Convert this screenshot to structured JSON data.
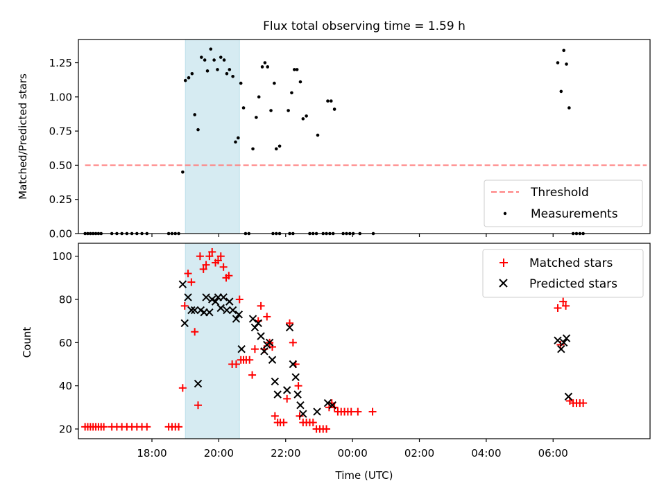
{
  "chart_data": [
    {
      "type": "scatter",
      "title": "Flux total observing time = 1.59 h",
      "xlabel": "",
      "ylabel": "Matched/Predicted stars",
      "xlim": [
        -1.2,
        15.9
      ],
      "ylim": [
        0.0,
        1.42
      ],
      "xticks": [
        1,
        3,
        5,
        7,
        9,
        11,
        13
      ],
      "xtick_labels_visible": false,
      "yticks": [
        0.0,
        0.25,
        0.5,
        0.75,
        1.0,
        1.25
      ],
      "ytick_labels": [
        "0.00",
        "0.25",
        "0.50",
        "0.75",
        "1.00",
        "1.25"
      ],
      "shaded_region": {
        "x0": 2.0,
        "x1": 3.62,
        "color": "#add8e6",
        "alpha": 0.5
      },
      "threshold": {
        "label": "Threshold",
        "y": 0.5,
        "x0": -1.0,
        "x1": 15.8,
        "color": "#ff7f7f",
        "style": "dashed"
      },
      "measurements": {
        "label": "Measurements",
        "color": "#000000",
        "points": [
          [
            -1.0,
            0.0
          ],
          [
            -0.92,
            0.0
          ],
          [
            -0.84,
            0.0
          ],
          [
            -0.76,
            0.0
          ],
          [
            -0.68,
            0.0
          ],
          [
            -0.6,
            0.0
          ],
          [
            -0.52,
            0.0
          ],
          [
            -0.2,
            0.0
          ],
          [
            -0.05,
            0.0
          ],
          [
            0.1,
            0.0
          ],
          [
            0.25,
            0.0
          ],
          [
            0.4,
            0.0
          ],
          [
            0.55,
            0.0
          ],
          [
            0.7,
            0.0
          ],
          [
            0.85,
            0.0
          ],
          [
            1.5,
            0.0
          ],
          [
            1.6,
            0.0
          ],
          [
            1.7,
            0.0
          ],
          [
            1.8,
            0.0
          ],
          [
            1.92,
            0.45
          ],
          [
            2.0,
            1.12
          ],
          [
            2.1,
            1.14
          ],
          [
            2.2,
            1.17
          ],
          [
            2.28,
            0.87
          ],
          [
            2.38,
            0.76
          ],
          [
            2.48,
            1.29
          ],
          [
            2.58,
            1.27
          ],
          [
            2.66,
            1.19
          ],
          [
            2.76,
            1.35
          ],
          [
            2.86,
            1.27
          ],
          [
            2.96,
            1.2
          ],
          [
            3.06,
            1.29
          ],
          [
            3.16,
            1.27
          ],
          [
            3.24,
            1.17
          ],
          [
            3.32,
            1.2
          ],
          [
            3.42,
            1.15
          ],
          [
            3.5,
            0.67
          ],
          [
            3.58,
            0.7
          ],
          [
            3.66,
            1.1
          ],
          [
            3.74,
            0.92
          ],
          [
            3.8,
            0.0
          ],
          [
            3.9,
            0.0
          ],
          [
            4.02,
            0.62
          ],
          [
            4.12,
            0.85
          ],
          [
            4.2,
            1.0
          ],
          [
            4.3,
            1.22
          ],
          [
            4.38,
            1.25
          ],
          [
            4.46,
            1.22
          ],
          [
            4.56,
            0.9
          ],
          [
            4.66,
            1.1
          ],
          [
            4.72,
            0.62
          ],
          [
            4.82,
            0.64
          ],
          [
            5.08,
            0.9
          ],
          [
            5.18,
            1.03
          ],
          [
            5.26,
            1.2
          ],
          [
            5.34,
            1.2
          ],
          [
            5.44,
            1.11
          ],
          [
            5.52,
            0.84
          ],
          [
            5.62,
            0.86
          ],
          [
            5.96,
            0.72
          ],
          [
            6.26,
            0.97
          ],
          [
            6.36,
            0.97
          ],
          [
            6.46,
            0.91
          ],
          [
            4.62,
            0.0
          ],
          [
            4.72,
            0.0
          ],
          [
            4.82,
            0.0
          ],
          [
            5.12,
            0.0
          ],
          [
            5.22,
            0.0
          ],
          [
            5.72,
            0.0
          ],
          [
            5.82,
            0.0
          ],
          [
            5.92,
            0.0
          ],
          [
            6.12,
            0.0
          ],
          [
            6.22,
            0.0
          ],
          [
            6.32,
            0.0
          ],
          [
            6.42,
            0.0
          ],
          [
            6.72,
            0.0
          ],
          [
            6.82,
            0.0
          ],
          [
            6.92,
            0.0
          ],
          [
            7.02,
            0.0
          ],
          [
            7.22,
            0.0
          ],
          [
            7.62,
            0.0
          ],
          [
            13.14,
            1.25
          ],
          [
            13.24,
            1.04
          ],
          [
            13.32,
            1.34
          ],
          [
            13.4,
            1.24
          ],
          [
            13.48,
            0.92
          ],
          [
            13.6,
            0.0
          ],
          [
            13.7,
            0.0
          ],
          [
            13.8,
            0.0
          ],
          [
            13.9,
            0.0
          ]
        ]
      },
      "legend": {
        "location": "lower-right",
        "entries": [
          "Threshold",
          "Measurements"
        ]
      }
    },
    {
      "type": "scatter",
      "title": "",
      "xlabel": "Time (UTC)",
      "ylabel": "Count",
      "xlim": [
        -1.2,
        15.9
      ],
      "ylim": [
        15.5,
        106
      ],
      "xticks": [
        1,
        3,
        5,
        7,
        9,
        11,
        13
      ],
      "xtick_labels": [
        "18:00",
        "20:00",
        "22:00",
        "00:00",
        "02:00",
        "04:00",
        "06:00"
      ],
      "yticks": [
        20,
        40,
        60,
        80,
        100
      ],
      "ytick_labels": [
        "20",
        "40",
        "60",
        "80",
        "100"
      ],
      "shaded_region": {
        "x0": 2.0,
        "x1": 3.62,
        "color": "#add8e6",
        "alpha": 0.5
      },
      "series": [
        {
          "name": "Matched stars",
          "marker": "plus",
          "color": "#ff0000",
          "points": [
            [
              -1.0,
              21
            ],
            [
              -0.92,
              21
            ],
            [
              -0.84,
              21
            ],
            [
              -0.76,
              21
            ],
            [
              -0.68,
              21
            ],
            [
              -0.6,
              21
            ],
            [
              -0.52,
              21
            ],
            [
              -0.44,
              21
            ],
            [
              -0.2,
              21
            ],
            [
              -0.05,
              21
            ],
            [
              0.1,
              21
            ],
            [
              0.25,
              21
            ],
            [
              0.4,
              21
            ],
            [
              0.55,
              21
            ],
            [
              0.7,
              21
            ],
            [
              0.85,
              21
            ],
            [
              1.5,
              21
            ],
            [
              1.6,
              21
            ],
            [
              1.7,
              21
            ],
            [
              1.8,
              21
            ],
            [
              1.92,
              39
            ],
            [
              1.98,
              77
            ],
            [
              2.08,
              92
            ],
            [
              2.18,
              88
            ],
            [
              2.28,
              65
            ],
            [
              2.38,
              31
            ],
            [
              2.44,
              100
            ],
            [
              2.54,
              94
            ],
            [
              2.62,
              96
            ],
            [
              2.72,
              100
            ],
            [
              2.8,
              102
            ],
            [
              2.9,
              97
            ],
            [
              2.98,
              98
            ],
            [
              3.06,
              100
            ],
            [
              3.14,
              95
            ],
            [
              3.22,
              90
            ],
            [
              3.3,
              91
            ],
            [
              3.4,
              50
            ],
            [
              3.52,
              50
            ],
            [
              3.62,
              80
            ],
            [
              3.66,
              52
            ],
            [
              3.74,
              52
            ],
            [
              3.82,
              52
            ],
            [
              3.92,
              52
            ],
            [
              4.0,
              45
            ],
            [
              4.08,
              57
            ],
            [
              4.18,
              70
            ],
            [
              4.26,
              77
            ],
            [
              4.36,
              57
            ],
            [
              4.44,
              72
            ],
            [
              4.52,
              60
            ],
            [
              4.6,
              58
            ],
            [
              4.68,
              26
            ],
            [
              4.76,
              23
            ],
            [
              4.84,
              23
            ],
            [
              4.94,
              23
            ],
            [
              5.04,
              34
            ],
            [
              5.12,
              69
            ],
            [
              5.22,
              60
            ],
            [
              5.3,
              50
            ],
            [
              5.38,
              40
            ],
            [
              5.42,
              26
            ],
            [
              5.52,
              23
            ],
            [
              5.62,
              23
            ],
            [
              5.72,
              23
            ],
            [
              5.82,
              23
            ],
            [
              5.92,
              20
            ],
            [
              6.02,
              20
            ],
            [
              6.12,
              20
            ],
            [
              6.22,
              20
            ],
            [
              6.3,
              30
            ],
            [
              6.38,
              32
            ],
            [
              6.46,
              30
            ],
            [
              6.56,
              28
            ],
            [
              6.66,
              28
            ],
            [
              6.76,
              28
            ],
            [
              6.86,
              28
            ],
            [
              6.96,
              28
            ],
            [
              7.16,
              28
            ],
            [
              7.6,
              28
            ],
            [
              13.14,
              76
            ],
            [
              13.22,
              59
            ],
            [
              13.3,
              79
            ],
            [
              13.38,
              77
            ],
            [
              13.5,
              33
            ],
            [
              13.6,
              32
            ],
            [
              13.7,
              32
            ],
            [
              13.8,
              32
            ],
            [
              13.9,
              32
            ]
          ]
        },
        {
          "name": "Predicted stars",
          "marker": "x",
          "color": "#000000",
          "points": [
            [
              1.92,
              87
            ],
            [
              1.98,
              69
            ],
            [
              2.08,
              81
            ],
            [
              2.18,
              75
            ],
            [
              2.28,
              75
            ],
            [
              2.38,
              41
            ],
            [
              2.46,
              75
            ],
            [
              2.56,
              74
            ],
            [
              2.62,
              81
            ],
            [
              2.72,
              74
            ],
            [
              2.8,
              80
            ],
            [
              2.9,
              79
            ],
            [
              2.98,
              81
            ],
            [
              3.06,
              76
            ],
            [
              3.14,
              81
            ],
            [
              3.24,
              75
            ],
            [
              3.32,
              79
            ],
            [
              3.42,
              75
            ],
            [
              3.52,
              71
            ],
            [
              3.6,
              73
            ],
            [
              3.68,
              57
            ],
            [
              4.02,
              71
            ],
            [
              4.08,
              67
            ],
            [
              4.18,
              69
            ],
            [
              4.26,
              63
            ],
            [
              4.36,
              56
            ],
            [
              4.44,
              59
            ],
            [
              4.52,
              60
            ],
            [
              4.6,
              52
            ],
            [
              4.68,
              42
            ],
            [
              4.76,
              36
            ],
            [
              5.04,
              38
            ],
            [
              5.12,
              67
            ],
            [
              5.22,
              50
            ],
            [
              5.3,
              44
            ],
            [
              5.36,
              36
            ],
            [
              5.44,
              31
            ],
            [
              5.52,
              27
            ],
            [
              5.94,
              28
            ],
            [
              6.26,
              32
            ],
            [
              6.4,
              31
            ],
            [
              13.14,
              61
            ],
            [
              13.24,
              57
            ],
            [
              13.32,
              60
            ],
            [
              13.4,
              62
            ],
            [
              13.46,
              35
            ]
          ]
        }
      ],
      "legend": {
        "location": "upper-right",
        "entries": [
          "Matched stars",
          "Predicted stars"
        ]
      }
    }
  ]
}
